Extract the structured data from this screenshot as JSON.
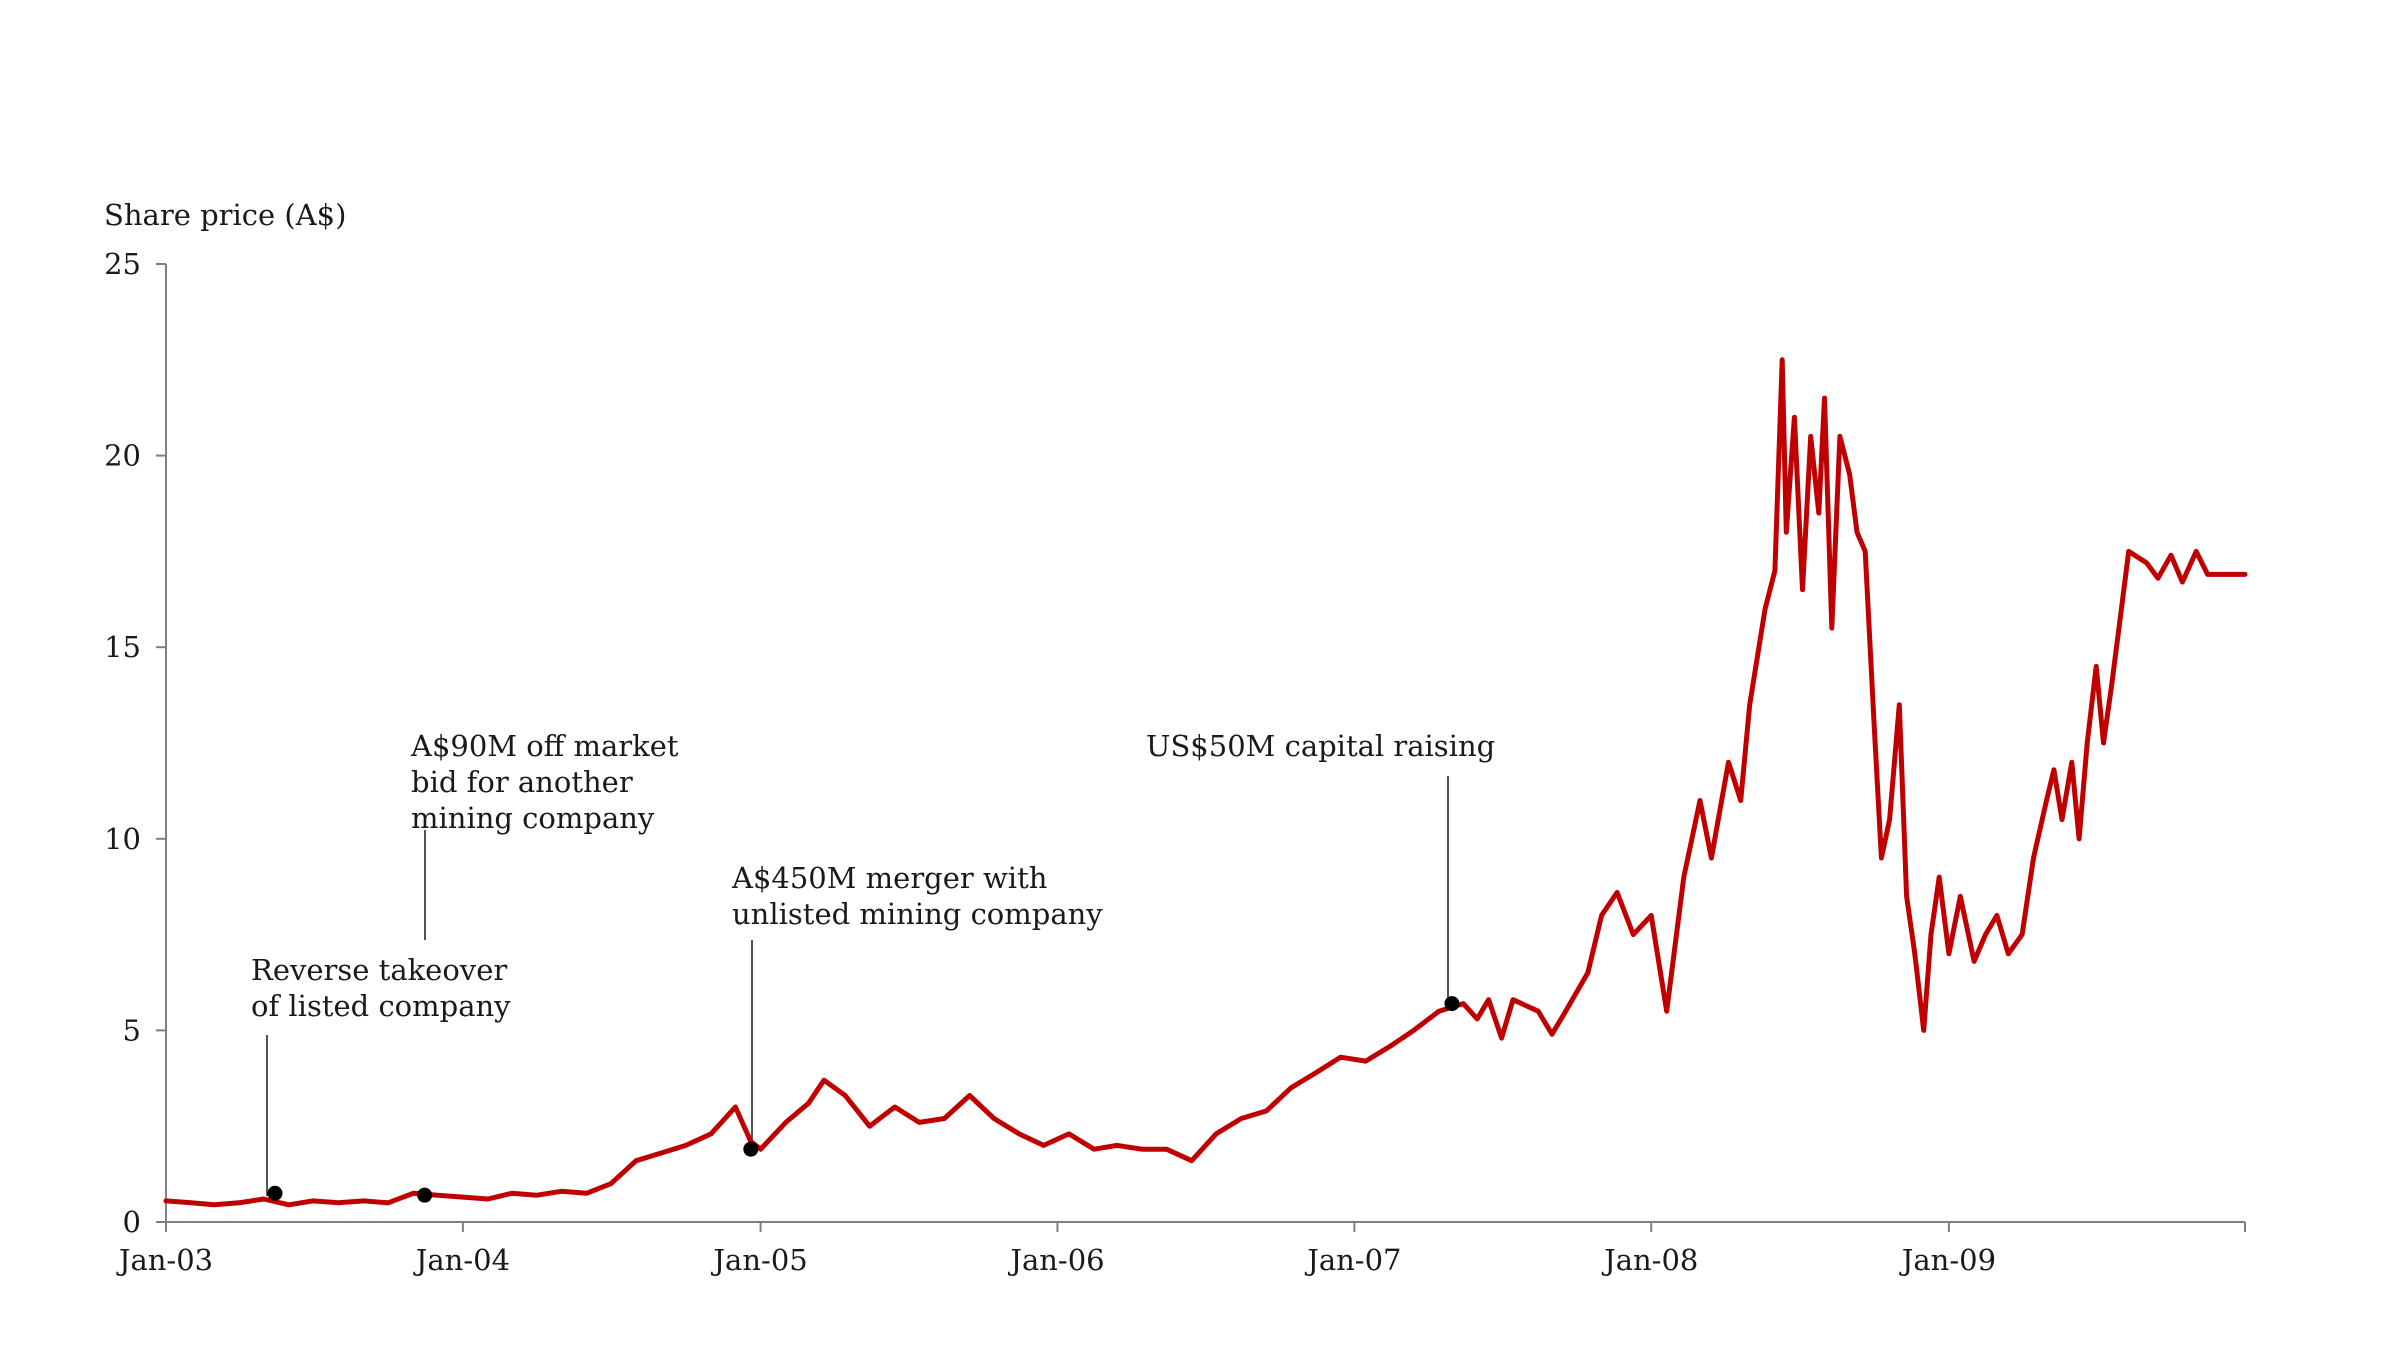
{
  "chart_data": {
    "type": "line",
    "title": "",
    "ylabel": "Share price (A$)",
    "xlabel": "",
    "ylim": [
      0,
      25
    ],
    "xlim": [
      "2003-01-01",
      "2009-12-31"
    ],
    "y_ticks": [
      0,
      5,
      10,
      15,
      20,
      25
    ],
    "x_ticks": [
      {
        "date": "2003-01-01",
        "label": "Jan-03"
      },
      {
        "date": "2004-01-01",
        "label": "Jan-04"
      },
      {
        "date": "2005-01-01",
        "label": "Jan-05"
      },
      {
        "date": "2006-01-01",
        "label": "Jan-06"
      },
      {
        "date": "2007-01-01",
        "label": "Jan-07"
      },
      {
        "date": "2008-01-01",
        "label": "Jan-08"
      },
      {
        "date": "2009-01-01",
        "label": "Jan-09"
      }
    ],
    "grid": false,
    "series": [
      {
        "color": "#c00000",
        "points": [
          [
            "2003-01-01",
            0.55
          ],
          [
            "2003-02-01",
            0.5
          ],
          [
            "2003-03-01",
            0.45
          ],
          [
            "2003-04-01",
            0.5
          ],
          [
            "2003-05-01",
            0.6
          ],
          [
            "2003-06-01",
            0.45
          ],
          [
            "2003-07-01",
            0.55
          ],
          [
            "2003-08-01",
            0.5
          ],
          [
            "2003-09-01",
            0.55
          ],
          [
            "2003-10-01",
            0.5
          ],
          [
            "2003-11-01",
            0.75
          ],
          [
            "2003-12-01",
            0.7
          ],
          [
            "2004-01-01",
            0.65
          ],
          [
            "2004-02-01",
            0.6
          ],
          [
            "2004-03-01",
            0.75
          ],
          [
            "2004-04-01",
            0.7
          ],
          [
            "2004-05-01",
            0.8
          ],
          [
            "2004-06-01",
            0.75
          ],
          [
            "2004-07-01",
            1.0
          ],
          [
            "2004-08-01",
            1.6
          ],
          [
            "2004-09-01",
            1.8
          ],
          [
            "2004-10-01",
            2.0
          ],
          [
            "2004-11-01",
            2.3
          ],
          [
            "2004-12-01",
            3.0
          ],
          [
            "2004-12-20",
            2.1
          ],
          [
            "2005-01-01",
            1.9
          ],
          [
            "2005-02-01",
            2.6
          ],
          [
            "2005-03-01",
            3.1
          ],
          [
            "2005-03-20",
            3.7
          ],
          [
            "2005-04-15",
            3.3
          ],
          [
            "2005-05-15",
            2.5
          ],
          [
            "2005-06-15",
            3.0
          ],
          [
            "2005-07-15",
            2.6
          ],
          [
            "2005-08-15",
            2.7
          ],
          [
            "2005-09-15",
            3.3
          ],
          [
            "2005-10-15",
            2.7
          ],
          [
            "2005-11-15",
            2.3
          ],
          [
            "2005-12-15",
            2.0
          ],
          [
            "2006-01-15",
            2.3
          ],
          [
            "2006-02-15",
            1.9
          ],
          [
            "2006-03-15",
            2.0
          ],
          [
            "2006-04-15",
            1.9
          ],
          [
            "2006-05-15",
            1.9
          ],
          [
            "2006-06-15",
            1.6
          ],
          [
            "2006-07-15",
            2.3
          ],
          [
            "2006-08-15",
            2.7
          ],
          [
            "2006-09-15",
            2.9
          ],
          [
            "2006-10-15",
            3.5
          ],
          [
            "2006-11-15",
            3.9
          ],
          [
            "2006-12-15",
            4.3
          ],
          [
            "2007-01-15",
            4.2
          ],
          [
            "2007-02-15",
            4.6
          ],
          [
            "2007-03-15",
            5.0
          ],
          [
            "2007-04-15",
            5.5
          ],
          [
            "2007-05-15",
            5.7
          ],
          [
            "2007-06-01",
            5.3
          ],
          [
            "2007-06-15",
            5.8
          ],
          [
            "2007-07-01",
            4.8
          ],
          [
            "2007-07-15",
            5.8
          ],
          [
            "2007-08-15",
            5.5
          ],
          [
            "2007-09-01",
            4.9
          ],
          [
            "2007-09-15",
            5.4
          ],
          [
            "2007-10-15",
            6.5
          ],
          [
            "2007-11-01",
            8.0
          ],
          [
            "2007-11-20",
            8.6
          ],
          [
            "2007-12-10",
            7.5
          ],
          [
            "2008-01-01",
            8.0
          ],
          [
            "2008-01-20",
            5.5
          ],
          [
            "2008-02-10",
            9.0
          ],
          [
            "2008-03-01",
            11.0
          ],
          [
            "2008-03-15",
            9.5
          ],
          [
            "2008-04-05",
            12.0
          ],
          [
            "2008-04-20",
            11.0
          ],
          [
            "2008-05-01",
            13.5
          ],
          [
            "2008-05-20",
            16.0
          ],
          [
            "2008-06-01",
            17.0
          ],
          [
            "2008-06-10",
            22.5
          ],
          [
            "2008-06-15",
            18.0
          ],
          [
            "2008-06-25",
            21.0
          ],
          [
            "2008-07-05",
            16.5
          ],
          [
            "2008-07-15",
            20.5
          ],
          [
            "2008-07-25",
            18.5
          ],
          [
            "2008-08-01",
            21.5
          ],
          [
            "2008-08-10",
            15.5
          ],
          [
            "2008-08-20",
            20.5
          ],
          [
            "2008-09-01",
            19.5
          ],
          [
            "2008-09-10",
            18.0
          ],
          [
            "2008-09-20",
            17.5
          ],
          [
            "2008-10-01",
            13.0
          ],
          [
            "2008-10-10",
            9.5
          ],
          [
            "2008-10-20",
            10.5
          ],
          [
            "2008-11-01",
            13.5
          ],
          [
            "2008-11-10",
            8.5
          ],
          [
            "2008-11-20",
            7.0
          ],
          [
            "2008-12-01",
            5.0
          ],
          [
            "2008-12-10",
            7.5
          ],
          [
            "2008-12-20",
            9.0
          ],
          [
            "2009-01-01",
            7.0
          ],
          [
            "2009-01-15",
            8.5
          ],
          [
            "2009-02-01",
            6.8
          ],
          [
            "2009-02-15",
            7.5
          ],
          [
            "2009-03-01",
            8.0
          ],
          [
            "2009-03-15",
            7.0
          ],
          [
            "2009-04-01",
            7.5
          ],
          [
            "2009-04-15",
            9.5
          ],
          [
            "2009-05-01",
            11.0
          ],
          [
            "2009-05-10",
            11.8
          ],
          [
            "2009-05-20",
            10.5
          ],
          [
            "2009-06-01",
            12.0
          ],
          [
            "2009-06-10",
            10.0
          ],
          [
            "2009-06-20",
            12.5
          ],
          [
            "2009-07-01",
            14.5
          ],
          [
            "2009-07-10",
            12.5
          ],
          [
            "2009-07-20",
            14.0
          ],
          [
            "2009-08-01",
            16.0
          ],
          [
            "2009-08-10",
            17.5
          ],
          [
            "2009-09-01",
            17.2
          ],
          [
            "2009-09-15",
            16.8
          ],
          [
            "2009-10-01",
            17.4
          ],
          [
            "2009-10-15",
            16.7
          ],
          [
            "2009-11-01",
            17.5
          ],
          [
            "2009-11-15",
            16.9
          ],
          [
            "2009-12-01",
            16.9
          ],
          [
            "2009-12-31",
            16.9
          ]
        ]
      }
    ],
    "markers": [
      {
        "date": "2003-05-15",
        "value": 0.75
      },
      {
        "date": "2003-11-15",
        "value": 0.7
      },
      {
        "date": "2004-12-20",
        "value": 1.9
      },
      {
        "date": "2007-05-01",
        "value": 5.7
      }
    ],
    "annotations": [
      {
        "lines": [
          "Reverse takeover",
          "of listed company"
        ]
      },
      {
        "lines": [
          "A$90M off market",
          "bid for another",
          "mining company"
        ]
      },
      {
        "lines": [
          "A$450M merger with",
          "unlisted mining company"
        ]
      },
      {
        "lines": [
          "US$50M capital raising"
        ]
      }
    ]
  }
}
